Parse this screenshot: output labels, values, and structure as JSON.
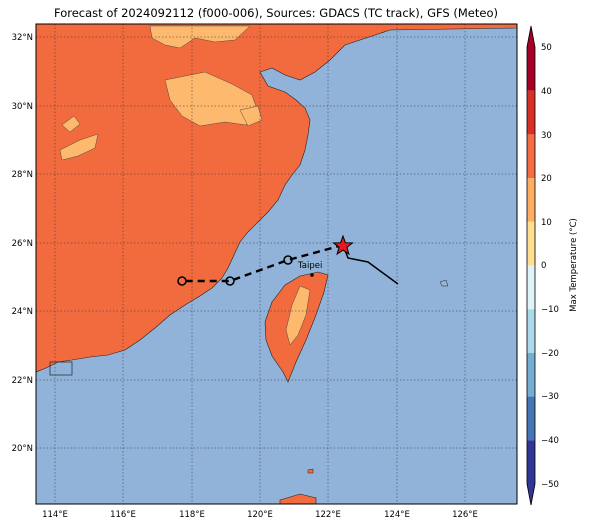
{
  "title": "Forecast of 2024092112 (f000-006), Sources: GDACS (TC track), GFS (Meteo)",
  "map": {
    "lat_labels": [
      "32°N",
      "30°N",
      "28°N",
      "26°N",
      "24°N",
      "22°N",
      "20°N"
    ],
    "lon_labels": [
      "114°E",
      "116°E",
      "118°E",
      "120°E",
      "122°E",
      "124°E",
      "126°E"
    ],
    "city_label": "Taipei",
    "colors": {
      "sea": "#92b3d9",
      "land_20_30": "#f26b3e",
      "land_10_20": "#fdb96e",
      "land_0_10": "#fee8a4"
    }
  },
  "colorbar": {
    "label": "Max Temperature (°C)",
    "ticks": [
      "50",
      "40",
      "30",
      "20",
      "10",
      "0",
      "−10",
      "−20",
      "−30",
      "−40",
      "−50"
    ],
    "colors": [
      "#a50026",
      "#d73027",
      "#f46d43",
      "#fdae61",
      "#fee090",
      "#ffffbf",
      "#e0f3f8",
      "#abd9e9",
      "#74add1",
      "#4575b4",
      "#313695"
    ]
  }
}
